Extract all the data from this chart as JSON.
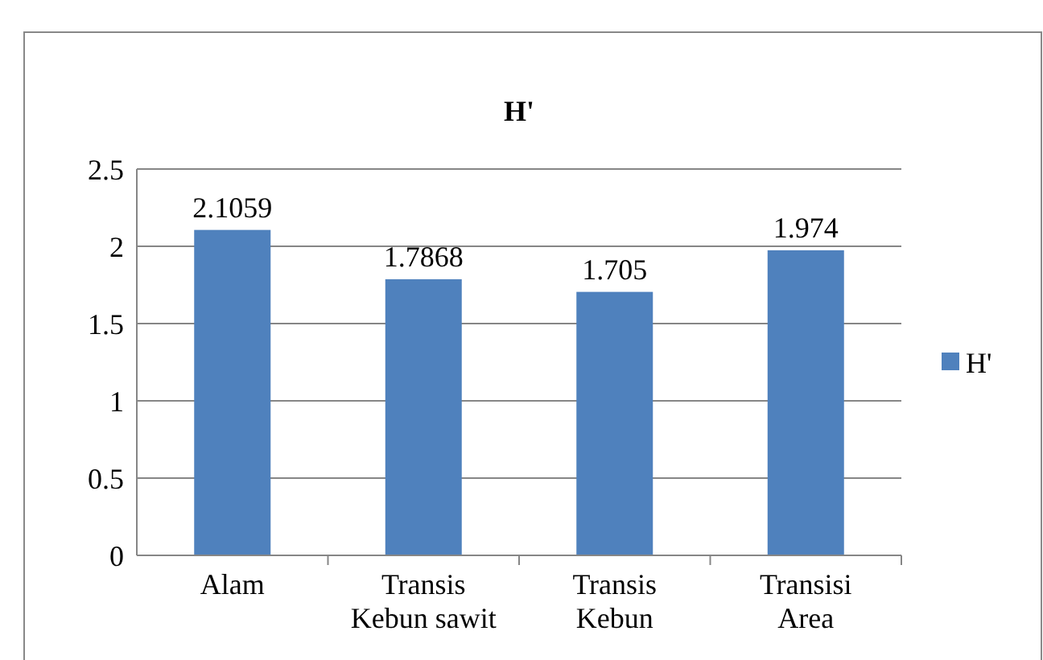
{
  "chart_data": {
    "type": "bar",
    "title": "H'",
    "categories": [
      "Alam",
      "Transis Kebun sawit",
      "Transis Kebun",
      "Transisi Area"
    ],
    "series": [
      {
        "name": "H'",
        "color": "#4f81bd",
        "values": [
          2.1059,
          1.7868,
          1.705,
          1.974
        ]
      }
    ],
    "ylim": [
      0,
      2.5
    ],
    "yticks": [
      0,
      0.5,
      1,
      1.5,
      2,
      2.5
    ],
    "grid": "y",
    "legend": "right",
    "data_labels": true
  }
}
